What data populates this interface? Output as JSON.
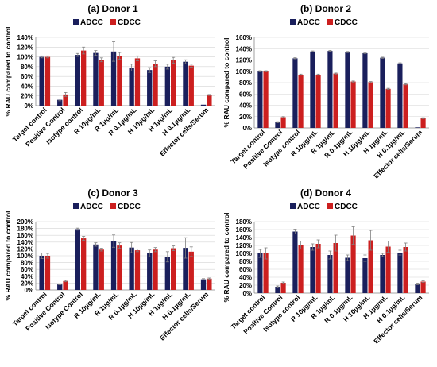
{
  "colors": {
    "adcc": "#1a1f5c",
    "cdcc": "#cc1f1f",
    "grid": "#d4d4d4",
    "axis": "#888888",
    "error": "#808080"
  },
  "legend": {
    "adcc": "ADCC",
    "cdcc": "CDCC"
  },
  "chart_data": [
    {
      "type": "bar",
      "title": "(a) Donor 1",
      "ylabel": "% RAU compared to control",
      "ylim": [
        0,
        140
      ],
      "yticks": [
        "0%",
        "20%",
        "40%",
        "60%",
        "80%",
        "100%",
        "120%",
        "140%"
      ],
      "categories": [
        "Target control",
        "Positive Control",
        "Isotype control",
        "R 10µg/mL",
        "R 1µg/mL",
        "R 0.1µg/mL",
        "H 10µg/mL",
        "H 1µg/mL",
        "H 0.1µg/mL",
        "Effector cells/Serum"
      ],
      "series": [
        {
          "name": "ADCC",
          "values": [
            100,
            12,
            104,
            108,
            111,
            78,
            73,
            80,
            90,
            2
          ],
          "errors": [
            2,
            2,
            3,
            5,
            20,
            7,
            5,
            5,
            4,
            0
          ]
        },
        {
          "name": "CDCC",
          "values": [
            100,
            23,
            113,
            94,
            102,
            97,
            86,
            93,
            82,
            22
          ],
          "errors": [
            2,
            4,
            7,
            4,
            7,
            5,
            6,
            6,
            3,
            1
          ]
        }
      ]
    },
    {
      "type": "bar",
      "title": "(b) Donor 2",
      "ylabel": "% RAU compared to control",
      "ylim": [
        0,
        160
      ],
      "yticks": [
        "0%",
        "20%",
        "40%",
        "60%",
        "80%",
        "100%",
        "120%",
        "140%",
        "160%"
      ],
      "categories": [
        "Target control",
        "Positive Control",
        "Isotype control",
        "R 10µg/mL",
        "R 1µg/mL",
        "R 0.1µg/mL",
        "H 10µg/mL",
        "H 1µg/mL",
        "H 0.1µg/mL",
        "Effector cells/Serum"
      ],
      "series": [
        {
          "name": "ADCC",
          "values": [
            100,
            10,
            123,
            135,
            136,
            134,
            132,
            124,
            114,
            1
          ],
          "errors": [
            1,
            1,
            1,
            1,
            1,
            1,
            1,
            1,
            1,
            0
          ]
        },
        {
          "name": "CDCC",
          "values": [
            100,
            19,
            94,
            94,
            96,
            82,
            81,
            69,
            77,
            17
          ],
          "errors": [
            1,
            1,
            1,
            1,
            1,
            1,
            1,
            1,
            1,
            1
          ]
        }
      ]
    },
    {
      "type": "bar",
      "title": "(c) Donor 3",
      "ylabel": "% RAU compared to control",
      "ylim": [
        0,
        200
      ],
      "yticks": [
        "0%",
        "20%",
        "40%",
        "60%",
        "80%",
        "100%",
        "120%",
        "140%",
        "160%",
        "180%",
        "200%"
      ],
      "categories": [
        "Target control",
        "Positive Control",
        "Isotype Control",
        "R 10µg/mL",
        "R 1µg/mL",
        "R 0.1µg/mL",
        "H 10µg/mL",
        "H 1µg/mL",
        "H 0.1µg/mL",
        "Effector cells/Serum"
      ],
      "series": [
        {
          "name": "ADCC",
          "values": [
            100,
            16,
            178,
            133,
            143,
            124,
            107,
            97,
            123,
            31
          ],
          "errors": [
            8,
            1,
            3,
            5,
            18,
            15,
            10,
            15,
            30,
            2
          ]
        },
        {
          "name": "CDCC",
          "values": [
            100,
            26,
            151,
            118,
            130,
            116,
            118,
            122,
            112,
            33
          ],
          "errors": [
            7,
            2,
            6,
            4,
            8,
            4,
            6,
            7,
            14,
            2
          ]
        }
      ]
    },
    {
      "type": "bar",
      "title": "(d) Donor 4",
      "ylabel": "% RAU compared to control",
      "ylim": [
        0,
        180
      ],
      "yticks": [
        "0%",
        "20%",
        "40%",
        "60%",
        "80%",
        "100%",
        "120%",
        "140%",
        "160%",
        "180%"
      ],
      "categories": [
        "Target control",
        "Positive Control",
        "Isotype control",
        "R 10µg/mL",
        "R 1µg/mL",
        "R 0.1µg/mL",
        "H 10µg/mL",
        "H 1µg/mL",
        "H 0.1µg/mL",
        "Effector cells/Serum"
      ],
      "series": [
        {
          "name": "ADCC",
          "values": [
            100,
            16,
            155,
            116,
            96,
            89,
            88,
            96,
            102,
            23
          ],
          "errors": [
            10,
            2,
            6,
            8,
            10,
            7,
            8,
            4,
            6,
            2
          ]
        },
        {
          "name": "CDCC",
          "values": [
            100,
            26,
            121,
            124,
            126,
            145,
            133,
            117,
            116,
            29
          ],
          "errors": [
            14,
            2,
            10,
            10,
            20,
            22,
            25,
            14,
            10,
            2
          ]
        }
      ]
    }
  ]
}
